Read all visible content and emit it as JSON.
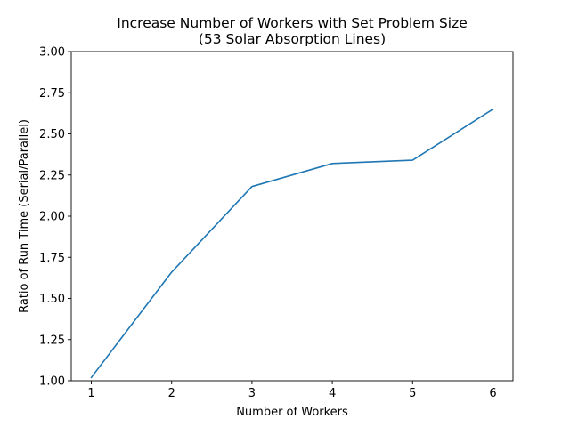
{
  "chart_data": {
    "type": "line",
    "title": "Increase Number of Workers with Set Problem Size",
    "subtitle": "(53 Solar Absorption Lines)",
    "xlabel": "Number of Workers",
    "ylabel": "Ratio of Run Time (Serial/Parallel)",
    "x": [
      1,
      2,
      3,
      4,
      5,
      6
    ],
    "series": [
      {
        "values": [
          1.02,
          1.66,
          2.18,
          2.32,
          2.34,
          2.65
        ],
        "color": "#1f77b4"
      }
    ],
    "xlim": [
      0.75,
      6.25
    ],
    "ylim": [
      1.0,
      3.0
    ],
    "xticks": [
      "1",
      "2",
      "3",
      "4",
      "5",
      "6"
    ],
    "yticks": [
      "1.00",
      "1.25",
      "1.50",
      "1.75",
      "2.00",
      "2.25",
      "2.50",
      "2.75",
      "3.00"
    ],
    "grid": false,
    "legend": false
  }
}
